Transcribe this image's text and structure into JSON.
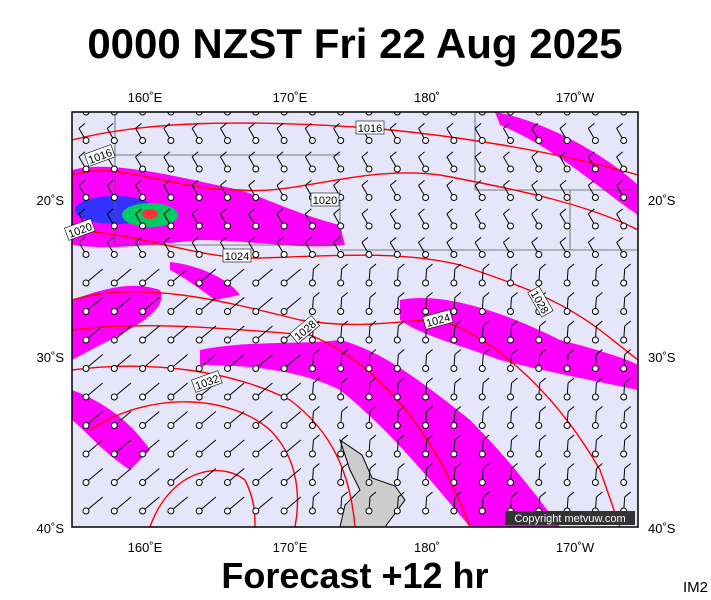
{
  "title": "0000 NZST Fri 22 Aug 2025",
  "footer": "Forecast +12 hr",
  "corner_label": "IM2",
  "copyright": "Copyright metvuw.com",
  "longitude_labels": [
    "160˚E",
    "170˚E",
    "180˚",
    "170˚W"
  ],
  "latitude_labels": [
    "20˚S",
    "30˚S",
    "40˚S"
  ],
  "isobar_labels": [
    "1016",
    "1016",
    "1020",
    "1020",
    "1024",
    "1024",
    "1028",
    "1028",
    "1032"
  ]
}
